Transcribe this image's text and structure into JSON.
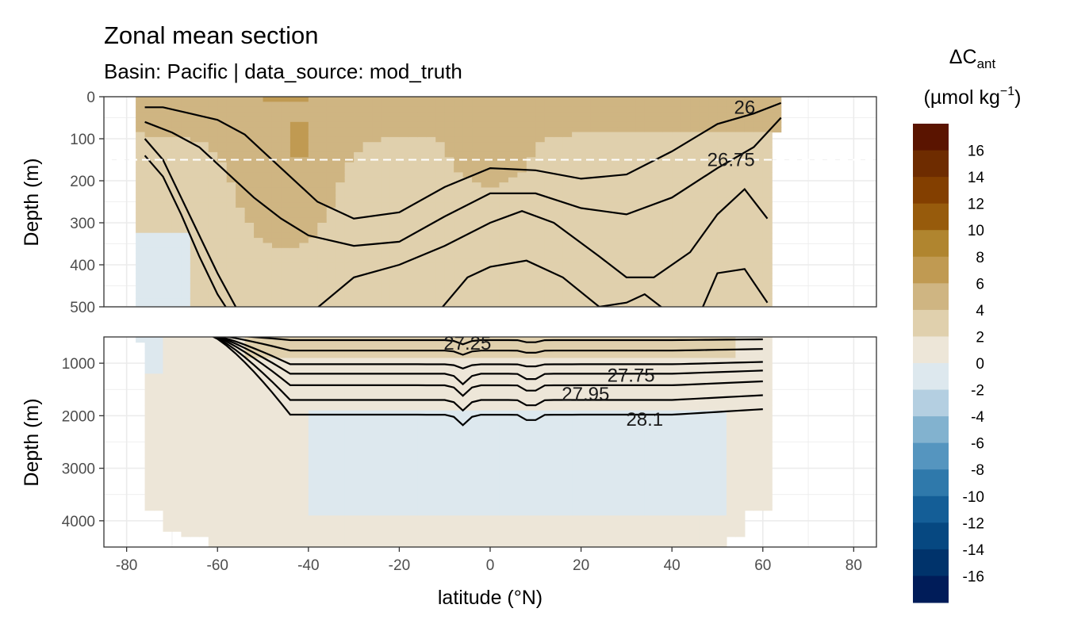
{
  "chart_data": {
    "type": "heatmap",
    "title": "Zonal mean section",
    "subtitle": "Basin: Pacific | data_source: mod_truth",
    "xlabel": "latitude (°N)",
    "ylabel": "Depth (m)",
    "xlim": [
      -85,
      85
    ],
    "x_ticks": [
      -80,
      -60,
      -40,
      -20,
      0,
      20,
      40,
      60,
      80
    ],
    "x_tick_labels": [
      "-80",
      "-60",
      "-40",
      "-20",
      "0",
      "20",
      "40",
      "60",
      "80"
    ],
    "grid": true,
    "reference_line": {
      "style": "dashed",
      "depth": 150
    },
    "panels": [
      {
        "ylim": [
          0,
          500
        ],
        "y_ticks": [
          0,
          100,
          200,
          300,
          400,
          500
        ],
        "y_tick_labels": [
          "0",
          "100",
          "200",
          "300",
          "400",
          "500"
        ],
        "contour_labels": [
          {
            "text": "26",
            "lat": 56,
            "depth": 25
          },
          {
            "text": "26.75",
            "lat": 53,
            "depth": 150
          }
        ]
      },
      {
        "ylim": [
          500,
          4500
        ],
        "y_ticks": [
          1000,
          2000,
          3000,
          4000
        ],
        "y_tick_labels": [
          "1000",
          "2000",
          "3000",
          "4000"
        ],
        "contour_labels": [
          {
            "text": "27.25",
            "lat": -5,
            "depth": 620
          },
          {
            "text": "27.75",
            "lat": 31,
            "depth": 1230
          },
          {
            "text": "27.95",
            "lat": 21,
            "depth": 1590
          },
          {
            "text": "28.1",
            "lat": 34,
            "depth": 2070
          }
        ]
      }
    ],
    "legend": {
      "title_main": "ΔC",
      "title_sub": "ant",
      "title_units": "(µmol kg",
      "title_units_sup": "−1",
      "title_units_close": ")",
      "placement": "right",
      "labels": [
        "16",
        "14",
        "12",
        "10",
        "8",
        "6",
        "4",
        "2",
        "0",
        "-2",
        "-4",
        "-6",
        "-8",
        "-10",
        "-12",
        "-14",
        "-16"
      ],
      "colors": [
        "#5a1400",
        "#6e2c00",
        "#833f00",
        "#975b0c",
        "#b0852f",
        "#c09a52",
        "#cfb582",
        "#e0d0ad",
        "#ede6d8",
        "#dde8ee",
        "#b4cfe1",
        "#82b2cf",
        "#5595bf",
        "#2f79ab",
        "#145e97",
        "#064881",
        "#00336b",
        "#001c59"
      ]
    }
  }
}
